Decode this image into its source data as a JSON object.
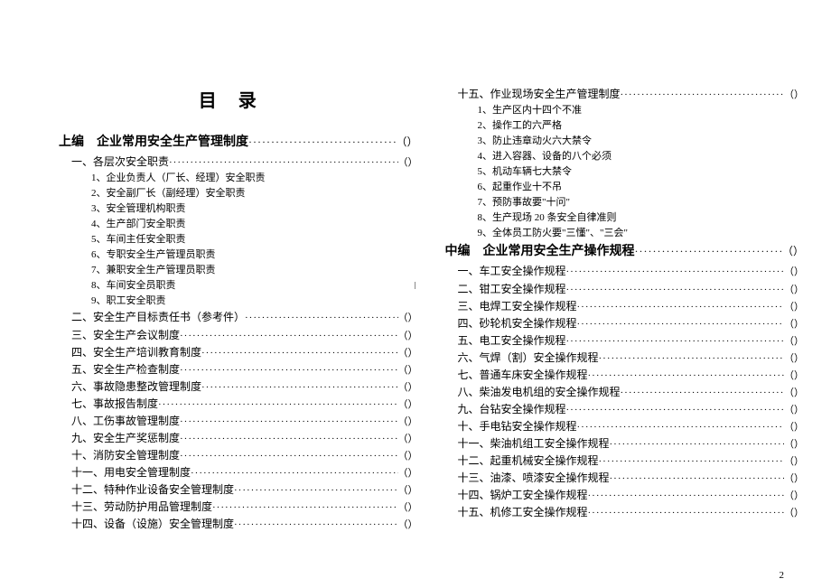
{
  "title": "目录",
  "dots": "··································································································",
  "page_ref": "（）",
  "page_number": "2",
  "section_a": {
    "heading": "上编　企业常用安全生产管理制度",
    "group1_heading": "一、各层次安全职责",
    "items_no_page": [
      "1、企业负责人（厂长、经理）安全职责",
      "2、安全副厂长（副经理）安全职责",
      "3、安全管理机构职责",
      "4、生产部门安全职责",
      "5、车间主任安全职责",
      "6、专职安全生产管理员职责",
      "7、兼职安全生产管理员职责",
      "8、车间安全员职责",
      "9、职工安全职责"
    ],
    "items_with_page": [
      "二、安全生产目标责任书（参考件）",
      "三、安全生产会议制度",
      "四、安全生产培训教育制度",
      "五、安全生产检查制度",
      "六、事故隐患整改管理制度",
      "七、事故报告制度",
      "八、工伤事故管理制度",
      "九、安全生产奖惩制度",
      "十、消防安全管理制度",
      "十一、用电安全管理制度",
      "十二、特种作业设备安全管理制度",
      "十三、劳动防护用品管理制度",
      "十四、设备（设施）安全管理制度"
    ]
  },
  "section_a_cont": {
    "heading": "十五、作业现场安全生产管理制度",
    "items_no_page": [
      "1、生产区内十四个不准",
      "2、操作工的六严格",
      "3、防止违章动火六大禁令",
      "4、进入容器、设备的八个必须",
      "5、机动车辆七大禁令",
      "6、起重作业十不吊",
      "7、预防事故要\"十问\"",
      "8、生产现场 20 条安全自律准则",
      "9、全体员工防火要\"三懂\"、\"三会\""
    ]
  },
  "section_b": {
    "heading": "中编　企业常用安全生产操作规程",
    "items_with_page": [
      "一、车工安全操作规程",
      "二、钳工安全操作规程",
      "三、电焊工安全操作规程",
      "四、砂轮机安全操作规程",
      "五、电工安全操作规程",
      "六、气焊（割）安全操作规程",
      "七、普通车床安全操作规程",
      "八、柴油发电机组的安全操作规程",
      "九、台钻安全操作规程",
      "十、手电钻安全操作规程",
      "十一、柴油机组工安全操作规程",
      "十二、起重机械安全操作规程",
      "十三、油漆、喷漆安全操作规程",
      "十四、锅炉工安全操作规程",
      "十五、机修工安全操作规程"
    ]
  }
}
